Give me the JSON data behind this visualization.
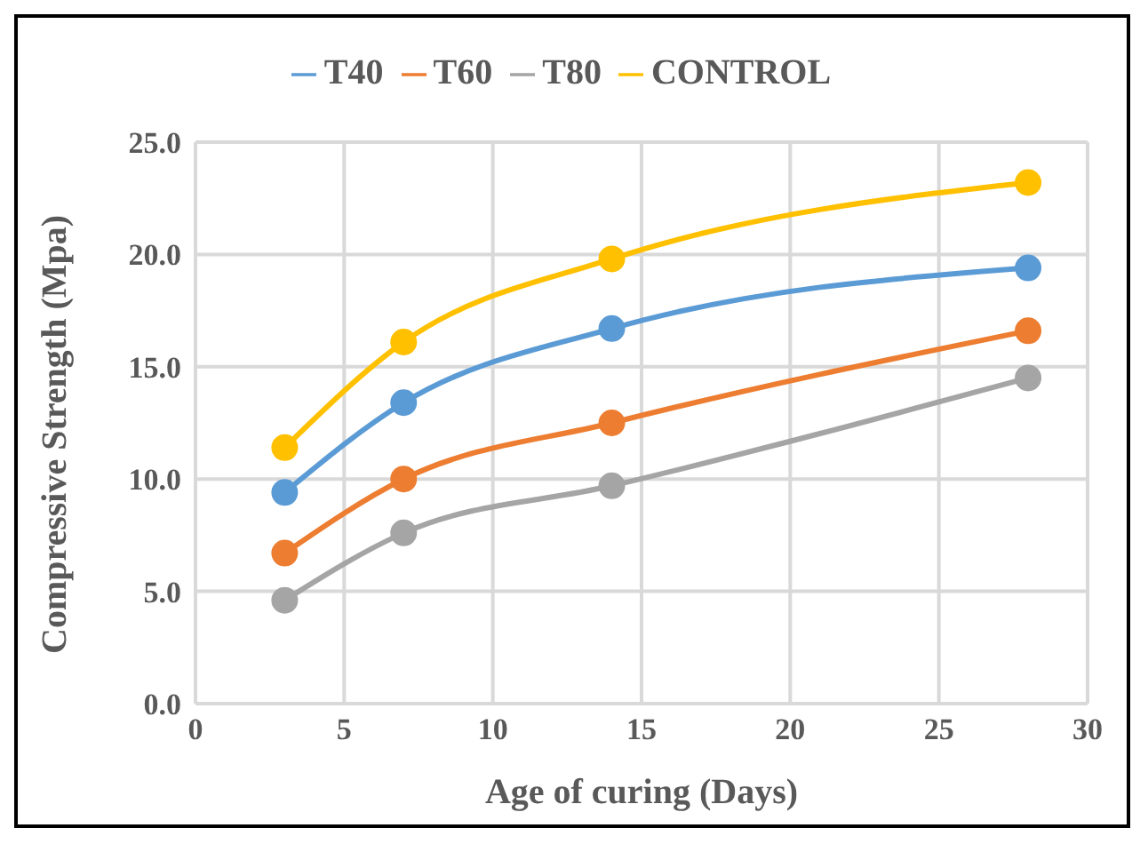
{
  "chart_data": {
    "type": "line",
    "xlabel": "Age of curing  (Days)",
    "ylabel": "Compressive Strength (Mpa)",
    "x": [
      3,
      7,
      14,
      28
    ],
    "series": [
      {
        "name": "T40",
        "color": "#5b9bd5",
        "values": [
          9.4,
          13.4,
          16.7,
          19.4
        ]
      },
      {
        "name": "T60",
        "color": "#ed7d31",
        "values": [
          6.7,
          10.0,
          12.5,
          16.6
        ]
      },
      {
        "name": "T80",
        "color": "#a5a5a5",
        "values": [
          4.6,
          7.6,
          9.7,
          14.5
        ]
      },
      {
        "name": "CONTROL",
        "color": "#ffc000",
        "values": [
          11.4,
          16.1,
          19.8,
          23.2
        ]
      }
    ],
    "xlim": [
      0,
      30
    ],
    "xticks": [
      0,
      5,
      10,
      15,
      20,
      25,
      30
    ],
    "ylim": [
      0,
      25
    ],
    "yticks": [
      {
        "value": 0,
        "label": "0.0"
      },
      {
        "value": 5,
        "label": "5.0"
      },
      {
        "value": 10,
        "label": "10.0"
      },
      {
        "value": 15,
        "label": "15.0"
      },
      {
        "value": 20,
        "label": "20.0"
      },
      {
        "value": 25,
        "label": "25.0"
      }
    ],
    "grid": true,
    "legend": "top",
    "marker": "circle",
    "line_style": "solid"
  }
}
